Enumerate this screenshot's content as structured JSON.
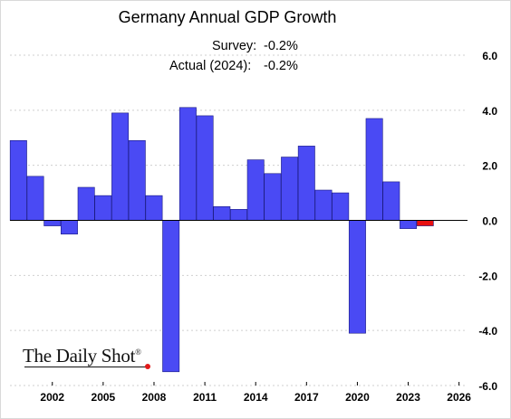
{
  "chart_data": {
    "type": "bar",
    "title": "Germany Annual GDP Growth",
    "annotations": [
      {
        "label": "Survey:",
        "value": "-0.2%"
      },
      {
        "label": "Actual (2024):",
        "value": "-0.2%"
      }
    ],
    "x": [
      2000,
      2001,
      2002,
      2003,
      2004,
      2005,
      2006,
      2007,
      2008,
      2009,
      2010,
      2011,
      2012,
      2013,
      2014,
      2015,
      2016,
      2017,
      2018,
      2019,
      2020,
      2021,
      2022,
      2023,
      2024
    ],
    "values": [
      2.9,
      1.6,
      -0.2,
      -0.5,
      1.2,
      0.9,
      3.9,
      2.9,
      0.9,
      -5.5,
      4.1,
      3.8,
      0.5,
      0.4,
      2.2,
      1.7,
      2.3,
      2.7,
      1.1,
      1.0,
      -4.1,
      3.7,
      1.4,
      -0.3,
      -0.2
    ],
    "highlight_year": 2024,
    "colors": {
      "bar": "#4a4af4",
      "highlight": "#e81010",
      "zero_line": "#000000",
      "grid": "#cfcfcf"
    },
    "xticks": [
      "2002",
      "2005",
      "2008",
      "2011",
      "2014",
      "2017",
      "2020",
      "2023",
      "2026"
    ],
    "xtick_values": [
      2002,
      2005,
      2008,
      2011,
      2014,
      2017,
      2020,
      2023,
      2026
    ],
    "yticks": [
      "6.0",
      "4.0",
      "2.0",
      "0.0",
      "-2.0",
      "-4.0",
      "-6.0"
    ],
    "ytick_values": [
      6,
      4,
      2,
      0,
      -2,
      -4,
      -6
    ],
    "ylim": [
      -6,
      6
    ],
    "xlim": [
      1999.5,
      2026.5
    ],
    "y_axis_side": "right",
    "grid": true,
    "xlabel": "",
    "ylabel": ""
  },
  "brand": {
    "name": "The Daily Shot",
    "mark": "®"
  }
}
